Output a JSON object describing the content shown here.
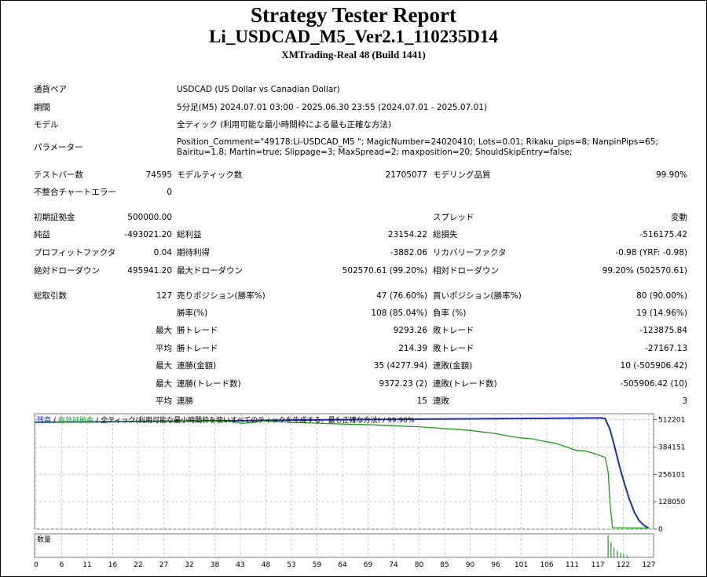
{
  "header": {
    "title": "Strategy Tester Report",
    "ea_name": "Li_USDCAD_M5_Ver2.1_110235D14",
    "server": "XMTrading-Real 48 (Build 1441)"
  },
  "settings": {
    "symbol_label": "通貨ペア",
    "symbol_value": "USDCAD (US Dollar vs Canadian Dollar)",
    "period_label": "期間",
    "period_value": "5分足(M5) 2024.07.01 03:00 - 2025.06.30 23:55 (2024.07.01 - 2025.07.01)",
    "model_label": "モデル",
    "model_value": "全ティック (利用可能な最小時間枠による最も正確な方法)",
    "params_label": "パラメーター",
    "params_value": "Position_Comment=\"49178:Li-USDCAD_M5 \"; MagicNumber=24020410; Lots=0.01; Rikaku_pips=8; NanpinPips=65; Bairitu=1.8; Martin=true; Slippage=3; MaxSpread=2; maxposition=20; ShouldSkipEntry=false;"
  },
  "quality": {
    "bars_label": "テストバー数",
    "bars_value": "74595",
    "ticks_label": "モデルティック数",
    "ticks_value": "21705077",
    "modeling_label": "モデリング品質",
    "modeling_value": "99.90%",
    "mismatch_label": "不整合チャートエラー",
    "mismatch_value": "0"
  },
  "results": {
    "deposit_label": "初期証拠金",
    "deposit_value": "500000.00",
    "spread_label": "スプレッド",
    "spread_value": "変動",
    "net_label": "純益",
    "net_value": "-493021.20",
    "gross_profit_label": "総利益",
    "gross_profit_value": "23154.22",
    "gross_loss_label": "総損失",
    "gross_loss_value": "-516175.42",
    "pf_label": "プロフィットファクタ",
    "pf_value": "0.04",
    "payoff_label": "期待利得",
    "payoff_value": "-3882.06",
    "recovery_label": "リカバリーファクタ",
    "recovery_value": "-0.98 (YRF: -0.98)",
    "abs_dd_label": "絶対ドローダウン",
    "abs_dd_value": "495941.20",
    "max_dd_label": "最大ドローダウン",
    "max_dd_value": "502570.61 (99.20%)",
    "rel_dd_label": "相対ドローダウン",
    "rel_dd_value": "99.20% (502570.61)"
  },
  "trades": {
    "total_label": "総取引数",
    "total_value": "127",
    "short_label": "売りポジション(勝率%)",
    "short_value": "47 (76.60%)",
    "long_label": "買いポジション(勝率%)",
    "long_value": "80 (90.00%)",
    "win_label": "勝率(%)",
    "win_value": "108 (85.04%)",
    "loss_label": "負率 (%)",
    "loss_value": "19 (14.96%)",
    "max_word": "最大",
    "avg_word": "平均",
    "largest_win_label": "勝トレード",
    "largest_win_value": "9293.26",
    "largest_loss_label": "敗トレード",
    "largest_loss_value": "-123875.84",
    "avg_win_label": "勝トレード",
    "avg_win_value": "214.39",
    "avg_loss_label": "敗トレード",
    "avg_loss_value": "-27167.13",
    "cons_wins_label": "連勝(金額)",
    "cons_wins_value": "35 (4277.94)",
    "cons_losses_label": "連敗(金額)",
    "cons_losses_value": "10 (-505906.42)",
    "cons_profit_label": "連勝(トレード数)",
    "cons_profit_value": "9372.23 (2)",
    "cons_loss_label": "連敗(トレード数)",
    "cons_loss_value": "-505906.42 (10)",
    "avg_cons_wins_label": "連勝",
    "avg_cons_wins_value": "15",
    "avg_cons_losses_label": "連敗",
    "avg_cons_losses_value": "3"
  },
  "chart_data": {
    "type": "line",
    "legend": {
      "balance": "残高",
      "sep1": "/",
      "equity": "有効証拠金",
      "sep2": "/",
      "model": "全ティック(利用可能な最小時間枠を使いすべてのティックを生成する、最も正確な方法)",
      "sep3": "/",
      "quality": "99.90%"
    },
    "y_ticks": [
      0,
      128050,
      256101,
      384151,
      512201
    ],
    "ylim": [
      0,
      540000
    ],
    "xlim": [
      0,
      128
    ],
    "x_ticks": [
      "0",
      "6",
      "11",
      "16",
      "22",
      "27",
      "32",
      "38",
      "43",
      "48",
      "53",
      "59",
      "64",
      "69",
      "74",
      "80",
      "85",
      "90",
      "96",
      "101",
      "106",
      "111",
      "117",
      "122",
      "127"
    ],
    "series": [
      {
        "name": "残高",
        "color": "#1c2fb5",
        "x": [
          0,
          10,
          20,
          30,
          40,
          45,
          48,
          52,
          60,
          80,
          100,
          112,
          117,
          118,
          119,
          120,
          121,
          122,
          123,
          124,
          125,
          126,
          127
        ],
        "y": [
          500000,
          501800,
          503300,
          505000,
          506800,
          507900,
          508700,
          509700,
          511500,
          514500,
          517500,
          519500,
          520200,
          517000,
          465000,
          380000,
          290000,
          210000,
          140000,
          80000,
          40000,
          18000,
          4979
        ]
      },
      {
        "name": "有効証拠金",
        "color": "#1d9b1d",
        "x": [
          0,
          5,
          10,
          20,
          30,
          38,
          41,
          43,
          45,
          47,
          50,
          55,
          60,
          70,
          80,
          90,
          95,
          100,
          103,
          106,
          108,
          110,
          112,
          114,
          116,
          118,
          118.6,
          119,
          119.5,
          120,
          122,
          125,
          127
        ],
        "y": [
          500000,
          500500,
          501200,
          502800,
          504500,
          505500,
          502500,
          495000,
          499000,
          506000,
          503000,
          498000,
          494000,
          488000,
          478000,
          462000,
          448000,
          428000,
          422000,
          408000,
          400000,
          384000,
          368000,
          365000,
          352000,
          335000,
          270000,
          120000,
          8000,
          6000,
          5500,
          5200,
          4979
        ]
      }
    ],
    "volume_label": "数量",
    "volume_bars": [
      {
        "x": 118.6,
        "v": 1.0
      },
      {
        "x": 119.2,
        "v": 0.7
      },
      {
        "x": 119.8,
        "v": 0.45
      },
      {
        "x": 120.5,
        "v": 0.3
      },
      {
        "x": 121.2,
        "v": 0.2
      },
      {
        "x": 121.8,
        "v": 0.12
      },
      {
        "x": 122.5,
        "v": 0.08
      }
    ]
  }
}
